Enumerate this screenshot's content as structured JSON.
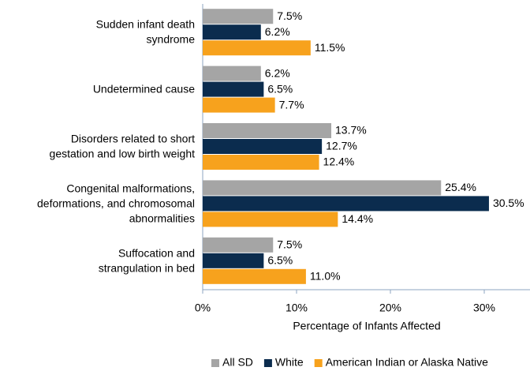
{
  "chart_data": {
    "type": "bar",
    "orientation": "horizontal",
    "categories": [
      "Sudden infant death\nsyndrome",
      "Undetermined cause",
      "Disorders related to short\ngestation and low birth weight",
      "Congenital malformations,\ndeformations, and chromosomal\nabnormalities",
      "Suffocation and\nstrangulation in bed"
    ],
    "series": [
      {
        "name": "All SD",
        "color": "#a5a5a5",
        "values": [
          7.5,
          6.2,
          13.7,
          25.4,
          7.5
        ],
        "value_labels": [
          "7.5%",
          "6.2%",
          "13.7%",
          "25.4%",
          "7.5%"
        ]
      },
      {
        "name": "White",
        "color": "#0b2c4e",
        "values": [
          6.2,
          6.5,
          12.7,
          30.5,
          6.5
        ],
        "value_labels": [
          "6.2%",
          "6.5%",
          "12.7%",
          "30.5%",
          "6.5%"
        ]
      },
      {
        "name": "American Indian or Alaska Native",
        "color": "#f7a21d",
        "values": [
          11.5,
          7.7,
          12.4,
          14.4,
          11.0
        ],
        "value_labels": [
          "11.5%",
          "7.7%",
          "12.4%",
          "14.4%",
          "11.0%"
        ]
      }
    ],
    "xlabel": "Percentage of Infants Affected",
    "xlim": [
      0,
      35
    ],
    "xticks": [
      {
        "value": 0,
        "label": "0%"
      },
      {
        "value": 10,
        "label": "10%"
      },
      {
        "value": 20,
        "label": "20%"
      },
      {
        "value": 30,
        "label": "30%"
      }
    ],
    "legend": "bottom"
  }
}
